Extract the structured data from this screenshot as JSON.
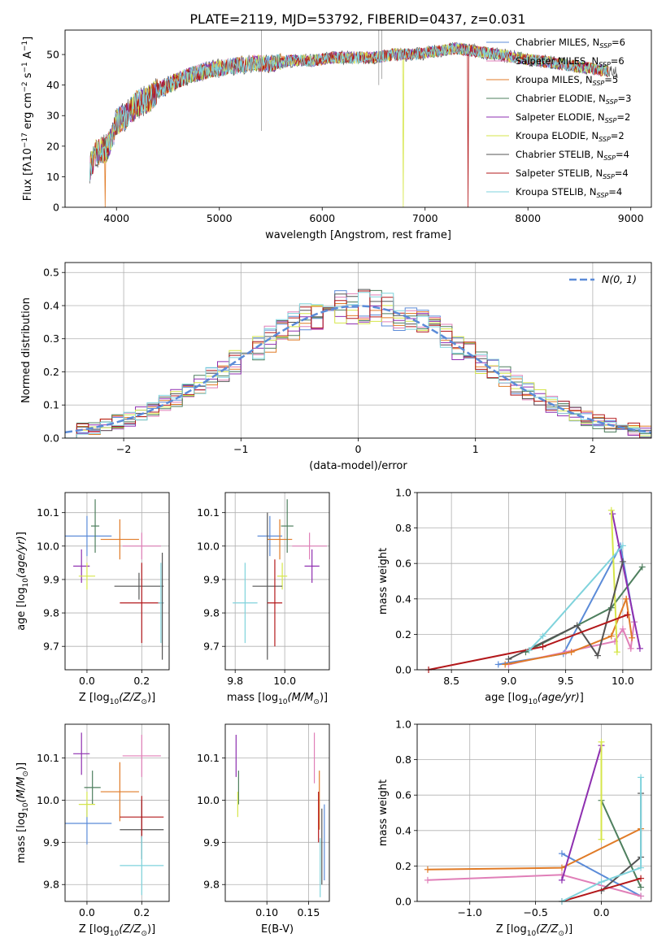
{
  "figure_title": "PLATE=2119, MJD=53792, FIBERID=0437, z=0.031",
  "colors": {
    "Chabrier MILES": "#5b8bd8",
    "Salpeter MILES": "#e07fb8",
    "Kroupa MILES": "#e07b27",
    "Chabrier ELODIE": "#4e7f5e",
    "Salpeter ELODIE": "#8e2fb0",
    "Kroupa ELODIE": "#d6e64a",
    "Chabrier STELIB": "#555555",
    "Salpeter STELIB": "#b3181b",
    "Kroupa STELIB": "#7fd3dc",
    "normal": "#5b8bd8"
  },
  "chart_data": [
    {
      "type": "line",
      "title": "PLATE=2119, MJD=53792, FIBERID=0437, z=0.031",
      "xlabel": "wavelength [Angstrom, rest frame]",
      "ylabel_main": "Flux [f",
      "ylabel_sub1": "λ",
      "ylabel_mid": "10",
      "ylabel_sup1": "−17",
      "ylabel_tail": " erg cm",
      "ylabel_sup2": "−2",
      "ylabel_s": " s",
      "ylabel_sup3": "−1",
      "ylabel_end": " A",
      "ylabel_sup4": "−1",
      "ylabel_close": "]",
      "xlim": [
        3500,
        9200
      ],
      "ylim": [
        0,
        58
      ],
      "xticks": [
        4000,
        5000,
        6000,
        7000,
        8000,
        9000
      ],
      "yticks": [
        0,
        10,
        20,
        30,
        40,
        50
      ],
      "continuum_knots": [
        [
          3740,
          13
        ],
        [
          3800,
          18
        ],
        [
          3900,
          19
        ],
        [
          3960,
          23
        ],
        [
          4000,
          28
        ],
        [
          4100,
          30
        ],
        [
          4200,
          34
        ],
        [
          4300,
          35
        ],
        [
          4400,
          38
        ],
        [
          4500,
          40
        ],
        [
          4700,
          43
        ],
        [
          4900,
          45
        ],
        [
          5100,
          46
        ],
        [
          5300,
          47
        ],
        [
          5500,
          47
        ],
        [
          5700,
          48
        ],
        [
          5900,
          48
        ],
        [
          6100,
          49
        ],
        [
          6300,
          49
        ],
        [
          6500,
          49
        ],
        [
          6700,
          50
        ],
        [
          6900,
          50
        ],
        [
          7100,
          51
        ],
        [
          7300,
          52
        ],
        [
          7500,
          51
        ],
        [
          7700,
          50
        ],
        [
          7900,
          49
        ],
        [
          8100,
          48
        ],
        [
          8300,
          47
        ],
        [
          8500,
          46
        ],
        [
          8700,
          45
        ],
        [
          8870,
          44
        ]
      ],
      "legend_labels": [
        "Chabrier MILES, N",
        "Salpeter MILES, N",
        "Kroupa MILES, N",
        "Chabrier ELODIE, N",
        "Salpeter ELODIE, N",
        "Kroupa ELODIE, N",
        "Chabrier STELIB, N",
        "Salpeter STELIB, N",
        "Kroupa STELIB, N"
      ],
      "legend_sub": "SSP",
      "n_ssp": [
        6,
        6,
        5,
        3,
        2,
        2,
        4,
        4,
        4
      ],
      "legend_placement": "right"
    },
    {
      "type": "step",
      "xlabel": "(data-model)/error",
      "ylabel": "Normed distribution",
      "xlim": [
        -2.5,
        2.5
      ],
      "ylim": [
        0,
        0.53
      ],
      "xticks": [
        -2,
        -1,
        0,
        1,
        2
      ],
      "yticks": [
        0.0,
        0.1,
        0.2,
        0.3,
        0.4,
        0.5
      ],
      "bin_width": 0.1,
      "x0": -2.5,
      "normal_label": "N(0, 1)",
      "legend_placement": "top-right",
      "grid": true
    },
    {
      "type": "errorbar",
      "xlabel_prefix": "Z [log",
      "xlabel_sub": "10",
      "xlabel_body": "(Z/Z",
      "xlabel_sun": "⊙",
      "xlabel_end": ")]",
      "ylabel": "age  [log10(age/yr)]",
      "xlim": [
        -0.08,
        0.3
      ],
      "ylim": [
        9.63,
        10.16
      ],
      "xticks": [
        0.0,
        0.2
      ],
      "yticks": [
        9.7,
        9.8,
        9.9,
        10.0,
        10.1
      ],
      "points": [
        {
          "x": 0.0,
          "xerr": 0.09,
          "y": 10.03,
          "yerr": 0.06,
          "color": "Chabrier MILES"
        },
        {
          "x": 0.2,
          "xerr": 0.07,
          "y": 10.0,
          "yerr": 0.04,
          "color": "Salpeter MILES"
        },
        {
          "x": 0.12,
          "xerr": 0.07,
          "y": 10.02,
          "yerr": 0.06,
          "color": "Kroupa MILES"
        },
        {
          "x": 0.03,
          "xerr": 0.015,
          "y": 10.06,
          "yerr": 0.08,
          "color": "Chabrier ELODIE"
        },
        {
          "x": -0.02,
          "xerr": 0.03,
          "y": 9.94,
          "yerr": 0.05,
          "color": "Salpeter ELODIE"
        },
        {
          "x": 0.0,
          "xerr": 0.03,
          "y": 9.91,
          "yerr": 0.04,
          "color": "Kroupa ELODIE"
        },
        {
          "x": 0.19,
          "xerr": 0.09,
          "y": 9.88,
          "yerr": 0.04,
          "color": "Chabrier STELIB"
        },
        {
          "x": 0.2,
          "xerr": 0.08,
          "y": 9.83,
          "yerr": 0.12,
          "color": "Salpeter STELIB"
        },
        {
          "x": 0.27,
          "xerr": 0.01,
          "y": 9.83,
          "yerr": 0.12,
          "color": "Kroupa STELIB"
        },
        {
          "x": 0.275,
          "xerr": 0.0,
          "y": 9.82,
          "yerr": 0.16,
          "color": "Chabrier STELIB"
        }
      ]
    },
    {
      "type": "errorbar",
      "xlabel": "mass [log10(M/M☉)]",
      "xlim": [
        9.76,
        10.18
      ],
      "ylim": [
        9.63,
        10.16
      ],
      "xticks": [
        9.8,
        10.0
      ],
      "yticks": [
        9.7,
        9.8,
        9.9,
        10.0,
        10.1
      ],
      "points": [
        {
          "x": 9.94,
          "xerr": 0.05,
          "y": 10.03,
          "yerr": 0.06,
          "color": "Chabrier MILES"
        },
        {
          "x": 10.1,
          "xerr": 0.07,
          "y": 10.0,
          "yerr": 0.04,
          "color": "Salpeter MILES"
        },
        {
          "x": 9.98,
          "xerr": 0.05,
          "y": 10.02,
          "yerr": 0.06,
          "color": "Kroupa MILES"
        },
        {
          "x": 10.01,
          "xerr": 0.025,
          "y": 10.06,
          "yerr": 0.08,
          "color": "Chabrier ELODIE"
        },
        {
          "x": 10.11,
          "xerr": 0.03,
          "y": 9.94,
          "yerr": 0.05,
          "color": "Salpeter ELODIE"
        },
        {
          "x": 9.99,
          "xerr": 0.02,
          "y": 9.91,
          "yerr": 0.04,
          "color": "Kroupa ELODIE"
        },
        {
          "x": 9.93,
          "xerr": 0.06,
          "y": 9.88,
          "yerr": 0.22,
          "color": "Chabrier STELIB"
        },
        {
          "x": 9.96,
          "xerr": 0.03,
          "y": 9.83,
          "yerr": 0.13,
          "color": "Salpeter STELIB"
        },
        {
          "x": 9.84,
          "xerr": 0.05,
          "y": 9.83,
          "yerr": 0.12,
          "color": "Kroupa STELIB"
        }
      ]
    },
    {
      "type": "line",
      "xlabel": "age  [log10(age/yr)]",
      "ylabel": "mass weight",
      "xlim": [
        8.2,
        10.25
      ],
      "ylim": [
        0,
        1.0
      ],
      "xticks": [
        8.5,
        9.0,
        9.5,
        10.0
      ],
      "yticks": [
        0.0,
        0.2,
        0.4,
        0.6,
        0.8,
        1.0
      ],
      "series": [
        {
          "color": "Chabrier MILES",
          "points": [
            [
              8.91,
              0.03
            ],
            [
              9.48,
              0.09
            ],
            [
              9.98,
              0.7
            ],
            [
              10.1,
              0.27
            ]
          ]
        },
        {
          "color": "Salpeter MILES",
          "points": [
            [
              9.0,
              0.03
            ],
            [
              9.5,
              0.1
            ],
            [
              9.93,
              0.16
            ],
            [
              10.0,
              0.23
            ],
            [
              10.07,
              0.12
            ],
            [
              10.1,
              0.27
            ]
          ]
        },
        {
          "color": "Kroupa MILES",
          "points": [
            [
              8.97,
              0.03
            ],
            [
              9.55,
              0.1
            ],
            [
              9.9,
              0.19
            ],
            [
              10.03,
              0.4
            ],
            [
              10.08,
              0.18
            ]
          ]
        },
        {
          "color": "Chabrier ELODIE",
          "points": [
            [
              9.15,
              0.1
            ],
            [
              9.9,
              0.35
            ],
            [
              10.17,
              0.58
            ]
          ]
        },
        {
          "color": "Salpeter ELODIE",
          "points": [
            [
              9.91,
              0.88
            ],
            [
              10.15,
              0.12
            ]
          ]
        },
        {
          "color": "Kroupa ELODIE",
          "points": [
            [
              9.9,
              0.9
            ],
            [
              9.95,
              0.1
            ]
          ]
        },
        {
          "color": "Chabrier STELIB",
          "points": [
            [
              9.0,
              0.06
            ],
            [
              9.6,
              0.25
            ],
            [
              9.78,
              0.08
            ],
            [
              10.0,
              0.61
            ]
          ]
        },
        {
          "color": "Salpeter STELIB",
          "points": [
            [
              8.3,
              0.0
            ],
            [
              9.3,
              0.13
            ],
            [
              10.04,
              0.31
            ]
          ]
        },
        {
          "color": "Kroupa STELIB",
          "points": [
            [
              9.18,
              0.11
            ],
            [
              9.3,
              0.19
            ],
            [
              10.0,
              0.7
            ]
          ]
        }
      ]
    },
    {
      "type": "errorbar",
      "xlabel": "Z [log10(Z/Z☉)]",
      "ylabel": "mass [log10(M/M☉)]",
      "xlim": [
        -0.08,
        0.3
      ],
      "ylim": [
        9.76,
        10.18
      ],
      "xticks": [
        0.0,
        0.2
      ],
      "yticks": [
        9.8,
        9.9,
        10.0,
        10.1
      ],
      "points": [
        {
          "x": 0.0,
          "xerr": 0.09,
          "y": 9.945,
          "yerr": 0.05,
          "color": "Chabrier MILES"
        },
        {
          "x": 0.2,
          "xerr": 0.07,
          "y": 10.105,
          "yerr": 0.05,
          "color": "Salpeter MILES"
        },
        {
          "x": 0.12,
          "xerr": 0.07,
          "y": 10.02,
          "yerr": 0.07,
          "color": "Kroupa MILES"
        },
        {
          "x": 0.02,
          "xerr": 0.03,
          "y": 10.03,
          "yerr": 0.04,
          "color": "Chabrier ELODIE"
        },
        {
          "x": -0.02,
          "xerr": 0.03,
          "y": 10.11,
          "yerr": 0.05,
          "color": "Salpeter ELODIE"
        },
        {
          "x": 0.0,
          "xerr": 0.03,
          "y": 9.99,
          "yerr": 0.03,
          "color": "Kroupa ELODIE"
        },
        {
          "x": 0.2,
          "xerr": 0.08,
          "y": 9.93,
          "yerr": 0.07,
          "color": "Chabrier STELIB"
        },
        {
          "x": 0.2,
          "xerr": 0.08,
          "y": 9.96,
          "yerr": 0.05,
          "color": "Salpeter STELIB"
        },
        {
          "x": 0.2,
          "xerr": 0.08,
          "y": 9.845,
          "yerr": 0.07,
          "color": "Kroupa STELIB"
        }
      ]
    },
    {
      "type": "errorbar",
      "xlabel": "E(B-V)",
      "xlim": [
        0.05,
        0.175
      ],
      "ylim": [
        9.76,
        10.18
      ],
      "xticks": [
        0.1,
        0.15
      ],
      "yticks": [
        9.8,
        9.9,
        10.0,
        10.1
      ],
      "points": [
        {
          "x": 0.063,
          "y": 10.105,
          "yerr": 0.05,
          "color": "Salpeter ELODIE"
        },
        {
          "x": 0.066,
          "y": 10.03,
          "yerr": 0.04,
          "color": "Chabrier ELODIE"
        },
        {
          "x": 0.065,
          "y": 9.99,
          "yerr": 0.03,
          "color": "Kroupa ELODIE"
        },
        {
          "x": 0.157,
          "y": 10.1,
          "yerr": 0.06,
          "color": "Salpeter MILES"
        },
        {
          "x": 0.163,
          "y": 10.0,
          "yerr": 0.07,
          "color": "Kroupa MILES"
        },
        {
          "x": 0.162,
          "y": 9.96,
          "yerr": 0.06,
          "color": "Salpeter STELIB"
        },
        {
          "x": 0.166,
          "y": 9.89,
          "yerr": 0.09,
          "color": "Chabrier STELIB"
        },
        {
          "x": 0.169,
          "y": 9.9,
          "yerr": 0.09,
          "color": "Chabrier MILES"
        },
        {
          "x": 0.164,
          "y": 9.84,
          "yerr": 0.07,
          "color": "Kroupa STELIB"
        }
      ]
    },
    {
      "type": "line",
      "xlabel": "Z [log10(Z/Z☉)]",
      "ylabel": "mass weight",
      "xlim": [
        -1.4,
        0.38
      ],
      "ylim": [
        0,
        1.0
      ],
      "xticks": [
        -1.0,
        -0.5,
        0.0
      ],
      "yticks": [
        0.0,
        0.2,
        0.4,
        0.6,
        0.8,
        1.0
      ],
      "series": [
        {
          "color": "Chabrier MILES",
          "points": [
            [
              -0.3,
              0.27
            ],
            [
              0.3,
              0.03
            ]
          ]
        },
        {
          "color": "Salpeter MILES",
          "points": [
            [
              -1.32,
              0.12
            ],
            [
              -0.3,
              0.15
            ],
            [
              0.3,
              0.03
            ]
          ]
        },
        {
          "color": "Kroupa MILES",
          "points": [
            [
              -1.32,
              0.18
            ],
            [
              -0.3,
              0.19
            ],
            [
              0.3,
              0.41
            ]
          ]
        },
        {
          "color": "Chabrier ELODIE",
          "points": [
            [
              0.0,
              0.57
            ],
            [
              0.3,
              0.08
            ]
          ]
        },
        {
          "color": "Salpeter ELODIE",
          "points": [
            [
              -0.3,
              0.12
            ],
            [
              0.0,
              0.88
            ]
          ]
        },
        {
          "color": "Kroupa ELODIE",
          "points": [
            [
              0.0,
              0.9
            ],
            [
              0.0,
              0.35
            ]
          ]
        },
        {
          "color": "Chabrier STELIB",
          "points": [
            [
              0.0,
              0.06
            ],
            [
              0.3,
              0.25
            ],
            [
              0.3,
              0.61
            ]
          ]
        },
        {
          "color": "Salpeter STELIB",
          "points": [
            [
              -0.3,
              0.0
            ],
            [
              0.3,
              0.13
            ]
          ]
        },
        {
          "color": "Kroupa STELIB",
          "points": [
            [
              -0.3,
              0.0
            ],
            [
              0.0,
              0.11
            ],
            [
              0.3,
              0.19
            ],
            [
              0.3,
              0.7
            ]
          ]
        }
      ]
    }
  ]
}
